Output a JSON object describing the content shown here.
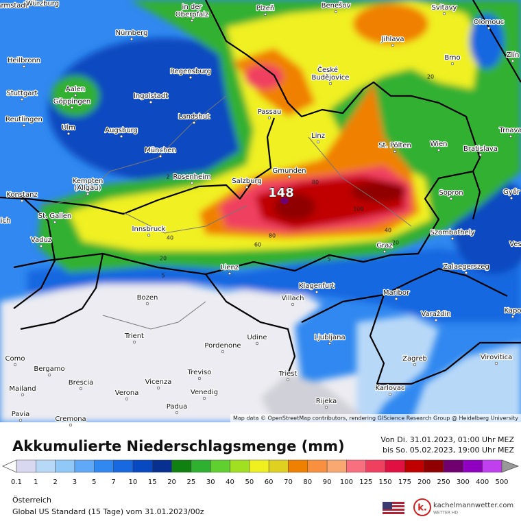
{
  "map": {
    "labels": [
      "armstadt",
      "Würzburg",
      "in der",
      "Oberpfalz",
      "Plzeň",
      "Benešov",
      "Svitavy",
      "Olomouc",
      "Nürnberg",
      "Jihlava",
      "Heilbronn",
      "Regensburg",
      "Brno",
      "Zlín",
      "České",
      "Budějovice",
      "Stuttgart",
      "Aalen",
      "Göppingen",
      "Ingolstadt",
      "Passau",
      "Landshut",
      "Reutlingen",
      "Ulm",
      "Augsburg",
      "Linz",
      "Trnava",
      "St. Pölten",
      "Wien",
      "Bratislava",
      "München",
      "Gmunden",
      "Rosenheim",
      "Kempten",
      "(Allgäu)",
      "Salzburg",
      "Sopron",
      "Győr",
      "Konstanz",
      "St. Gallen",
      "ich",
      "Innsbruck",
      "Szombathely",
      "Vaduz",
      "Graz",
      "Ves",
      "Lienz",
      "Zalaegerszeg",
      "Klagenfurt",
      "Maribor",
      "Bozen",
      "Villach",
      "Kapo",
      "Varaždin",
      "Trient",
      "Udine",
      "Ljubljana",
      "Pordenone",
      "Virovitica",
      "Zagreb",
      "Como",
      "Bergamo",
      "Treviso",
      "Triest",
      "Brescia",
      "Vicenza",
      "Mailand",
      "Karlovac",
      "Verona",
      "Venedig",
      "Rijeka",
      "Padua",
      "Pavia",
      "Cremona"
    ],
    "contours": [
      "148",
      "80",
      "100",
      "80",
      "60",
      "40",
      "20",
      "40",
      "20",
      "5",
      "5",
      "20",
      "2"
    ],
    "attribution": "Map data © OpenStreetMap contributors, rendering GIScience Research Group @ Heidelberg University"
  },
  "legend": {
    "title": "Akkumulierte Niederschlagsmenge (mm)",
    "period": [
      "Von Di. 31.01.2023, 01:00 Uhr MEZ",
      "bis So. 05.02.2023, 19:00 Uhr MEZ"
    ],
    "ticks": [
      "0.1",
      "1",
      "2",
      "3",
      "5",
      "7",
      "10",
      "15",
      "20",
      "25",
      "30",
      "40",
      "50",
      "60",
      "70",
      "80",
      "90",
      "100",
      "125",
      "150",
      "175",
      "200",
      "250",
      "300",
      "400",
      "500"
    ]
  },
  "footer": {
    "region": "Österreich",
    "model": "Global US Standard (15 Tage) vom 31.01.2023/00z",
    "brand": "kachelmannwetter.com",
    "brand_sub": "WETTER HD"
  }
}
